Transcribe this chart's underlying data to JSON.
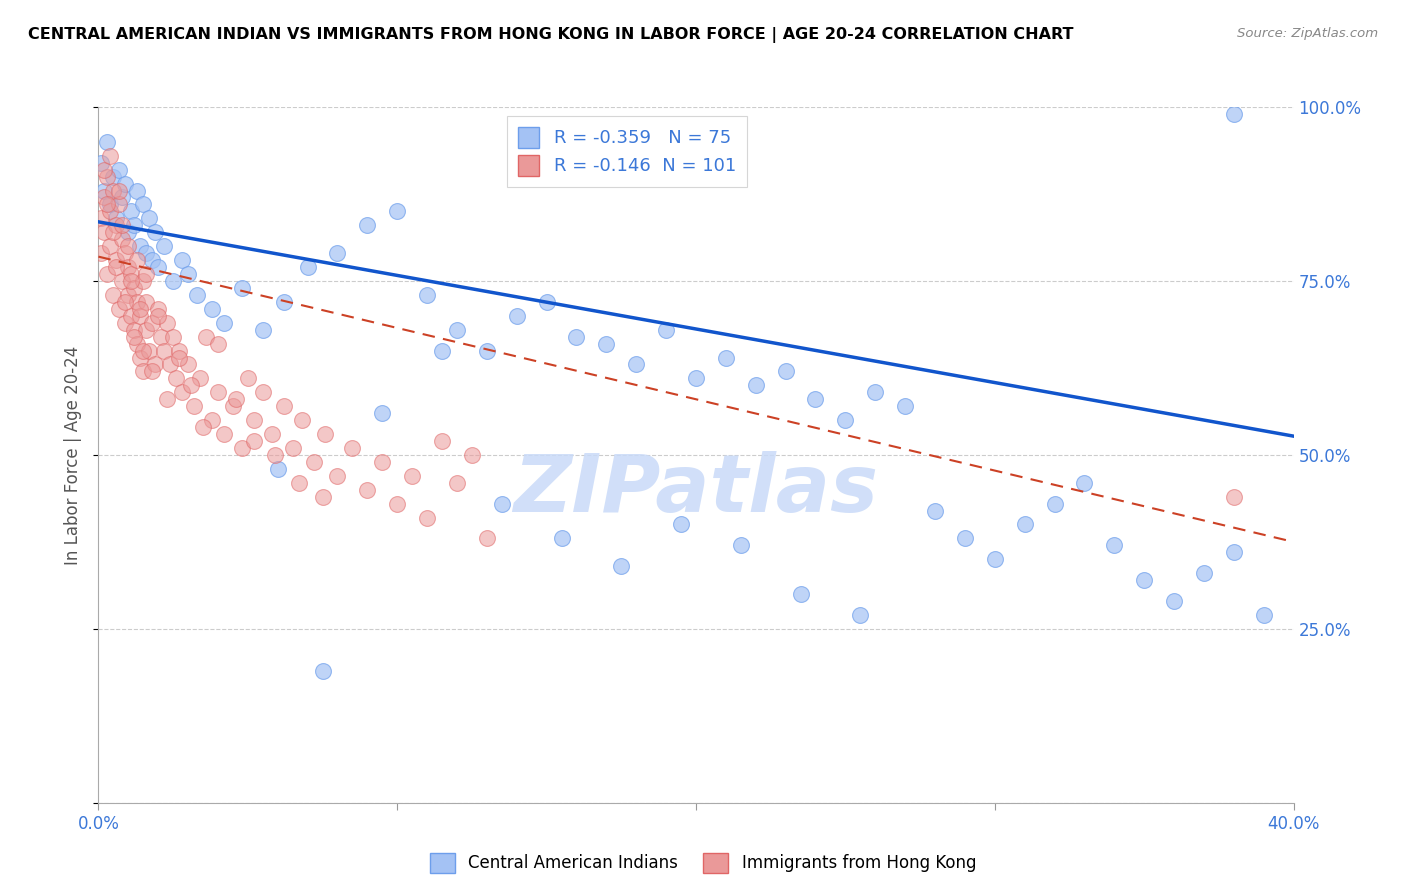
{
  "title": "CENTRAL AMERICAN INDIAN VS IMMIGRANTS FROM HONG KONG IN LABOR FORCE | AGE 20-24 CORRELATION CHART",
  "source": "Source: ZipAtlas.com",
  "ylabel": "In Labor Force | Age 20-24",
  "xlim": [
    0.0,
    0.4
  ],
  "ylim": [
    0.0,
    1.0
  ],
  "xtick_positions": [
    0.0,
    0.1,
    0.2,
    0.3,
    0.4
  ],
  "xticklabels": [
    "0.0%",
    "",
    "",
    "",
    "40.0%"
  ],
  "ytick_positions": [
    0.0,
    0.25,
    0.5,
    0.75,
    1.0
  ],
  "yticklabels_right": [
    "",
    "25.0%",
    "50.0%",
    "75.0%",
    "100.0%"
  ],
  "blue_color": "#a4c2f4",
  "blue_edge_color": "#6d9eeb",
  "pink_color": "#ea9999",
  "pink_edge_color": "#e06666",
  "blue_line_color": "#1155cc",
  "pink_line_color": "#cc4125",
  "blue_R": -0.359,
  "blue_N": 75,
  "pink_R": -0.146,
  "pink_N": 101,
  "watermark": "ZIPatlas",
  "watermark_color": "#c9daf8",
  "legend_label_blue": "Central American Indians",
  "legend_label_pink": "Immigrants from Hong Kong",
  "blue_line_x0": 0.0,
  "blue_line_y0": 0.835,
  "blue_line_x1": 0.4,
  "blue_line_y1": 0.527,
  "pink_line_x0": 0.0,
  "pink_line_y0": 0.785,
  "pink_line_x1": 0.4,
  "pink_line_y1": 0.375,
  "blue_scatter_x": [
    0.001,
    0.002,
    0.003,
    0.004,
    0.005,
    0.006,
    0.007,
    0.008,
    0.009,
    0.01,
    0.011,
    0.012,
    0.013,
    0.014,
    0.015,
    0.016,
    0.017,
    0.018,
    0.019,
    0.02,
    0.022,
    0.025,
    0.028,
    0.03,
    0.033,
    0.038,
    0.042,
    0.048,
    0.055,
    0.062,
    0.07,
    0.08,
    0.09,
    0.1,
    0.11,
    0.12,
    0.13,
    0.14,
    0.15,
    0.16,
    0.17,
    0.18,
    0.19,
    0.2,
    0.21,
    0.22,
    0.23,
    0.24,
    0.25,
    0.26,
    0.27,
    0.28,
    0.29,
    0.3,
    0.31,
    0.32,
    0.33,
    0.34,
    0.35,
    0.36,
    0.37,
    0.38,
    0.39,
    0.06,
    0.075,
    0.095,
    0.115,
    0.135,
    0.155,
    0.175,
    0.195,
    0.215,
    0.235,
    0.255,
    0.38
  ],
  "blue_scatter_y": [
    0.92,
    0.88,
    0.95,
    0.86,
    0.9,
    0.84,
    0.91,
    0.87,
    0.89,
    0.82,
    0.85,
    0.83,
    0.88,
    0.8,
    0.86,
    0.79,
    0.84,
    0.78,
    0.82,
    0.77,
    0.8,
    0.75,
    0.78,
    0.76,
    0.73,
    0.71,
    0.69,
    0.74,
    0.68,
    0.72,
    0.77,
    0.79,
    0.83,
    0.85,
    0.73,
    0.68,
    0.65,
    0.7,
    0.72,
    0.67,
    0.66,
    0.63,
    0.68,
    0.61,
    0.64,
    0.6,
    0.62,
    0.58,
    0.55,
    0.59,
    0.57,
    0.42,
    0.38,
    0.35,
    0.4,
    0.43,
    0.46,
    0.37,
    0.32,
    0.29,
    0.33,
    0.36,
    0.27,
    0.48,
    0.19,
    0.56,
    0.65,
    0.43,
    0.38,
    0.34,
    0.4,
    0.37,
    0.3,
    0.27,
    0.99
  ],
  "pink_scatter_x": [
    0.001,
    0.001,
    0.002,
    0.002,
    0.003,
    0.003,
    0.004,
    0.004,
    0.005,
    0.005,
    0.006,
    0.006,
    0.007,
    0.007,
    0.008,
    0.008,
    0.009,
    0.009,
    0.01,
    0.01,
    0.011,
    0.011,
    0.012,
    0.012,
    0.013,
    0.013,
    0.014,
    0.014,
    0.015,
    0.015,
    0.016,
    0.016,
    0.017,
    0.018,
    0.019,
    0.02,
    0.021,
    0.022,
    0.023,
    0.024,
    0.025,
    0.026,
    0.027,
    0.028,
    0.03,
    0.032,
    0.034,
    0.036,
    0.038,
    0.04,
    0.042,
    0.045,
    0.048,
    0.05,
    0.052,
    0.055,
    0.058,
    0.062,
    0.065,
    0.068,
    0.072,
    0.076,
    0.08,
    0.085,
    0.09,
    0.095,
    0.1,
    0.105,
    0.11,
    0.115,
    0.12,
    0.125,
    0.13,
    0.002,
    0.003,
    0.004,
    0.005,
    0.006,
    0.007,
    0.008,
    0.009,
    0.01,
    0.011,
    0.012,
    0.013,
    0.014,
    0.015,
    0.016,
    0.018,
    0.02,
    0.023,
    0.027,
    0.031,
    0.035,
    0.04,
    0.046,
    0.052,
    0.059,
    0.067,
    0.075,
    0.38
  ],
  "pink_scatter_y": [
    0.84,
    0.79,
    0.87,
    0.82,
    0.9,
    0.76,
    0.85,
    0.8,
    0.88,
    0.73,
    0.83,
    0.78,
    0.86,
    0.71,
    0.81,
    0.75,
    0.79,
    0.69,
    0.77,
    0.73,
    0.76,
    0.7,
    0.74,
    0.68,
    0.72,
    0.66,
    0.7,
    0.64,
    0.75,
    0.62,
    0.68,
    0.72,
    0.65,
    0.69,
    0.63,
    0.71,
    0.67,
    0.65,
    0.69,
    0.63,
    0.67,
    0.61,
    0.65,
    0.59,
    0.63,
    0.57,
    0.61,
    0.67,
    0.55,
    0.59,
    0.53,
    0.57,
    0.51,
    0.61,
    0.55,
    0.59,
    0.53,
    0.57,
    0.51,
    0.55,
    0.49,
    0.53,
    0.47,
    0.51,
    0.45,
    0.49,
    0.43,
    0.47,
    0.41,
    0.52,
    0.46,
    0.5,
    0.38,
    0.91,
    0.86,
    0.93,
    0.82,
    0.77,
    0.88,
    0.83,
    0.72,
    0.8,
    0.75,
    0.67,
    0.78,
    0.71,
    0.65,
    0.76,
    0.62,
    0.7,
    0.58,
    0.64,
    0.6,
    0.54,
    0.66,
    0.58,
    0.52,
    0.5,
    0.46,
    0.44,
    0.44
  ]
}
